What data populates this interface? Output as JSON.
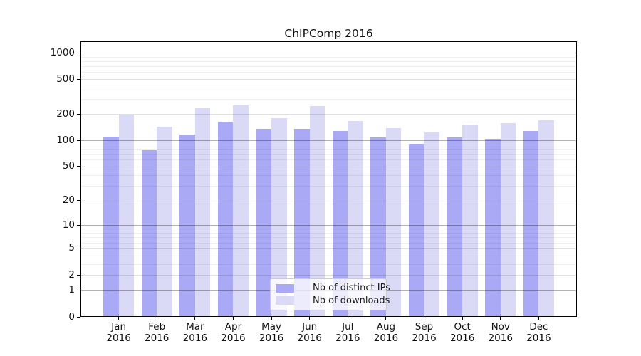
{
  "chart": {
    "title": "ChIPComp 2016",
    "legend": [
      {
        "label": "Nb of distinct IPs",
        "color_key": "bar_dark"
      },
      {
        "label": "Nb of downloads",
        "color_key": "bar_light"
      }
    ],
    "year_label": "2016"
  },
  "chart_data": {
    "type": "bar",
    "title": "ChIPComp 2016",
    "categories": [
      "Jan",
      "Feb",
      "Mar",
      "Apr",
      "May",
      "Jun",
      "Jul",
      "Aug",
      "Sep",
      "Oct",
      "Nov",
      "Dec"
    ],
    "category_year": "2016",
    "series": [
      {
        "name": "Nb of distinct IPs",
        "values": [
          110,
          77,
          117,
          163,
          135,
          136,
          127,
          108,
          91,
          108,
          104,
          127
        ]
      },
      {
        "name": "Nb of downloads",
        "values": [
          196,
          142,
          234,
          250,
          181,
          245,
          166,
          138,
          124,
          153,
          157,
          170
        ]
      }
    ],
    "xlabel": "",
    "ylabel": "",
    "y_ticks": [
      0,
      1,
      2,
      5,
      10,
      20,
      50,
      100,
      200,
      500,
      1000
    ],
    "ylim": [
      0,
      1000
    ],
    "scale": "log10(1+y)",
    "grid": true,
    "legend_position": "bottom-center"
  },
  "colors": {
    "bar_dark": "#a9a9f5",
    "bar_light": "#dadaf7",
    "decade_grid": "rgba(0,0,0,0.30)",
    "tick_grid": "rgba(0,0,0,0.12)",
    "minor_grid": "rgba(0,0,0,0.06)",
    "axis": "#000000",
    "legend_border": "#cccccc",
    "text": "#1a1a1a"
  }
}
